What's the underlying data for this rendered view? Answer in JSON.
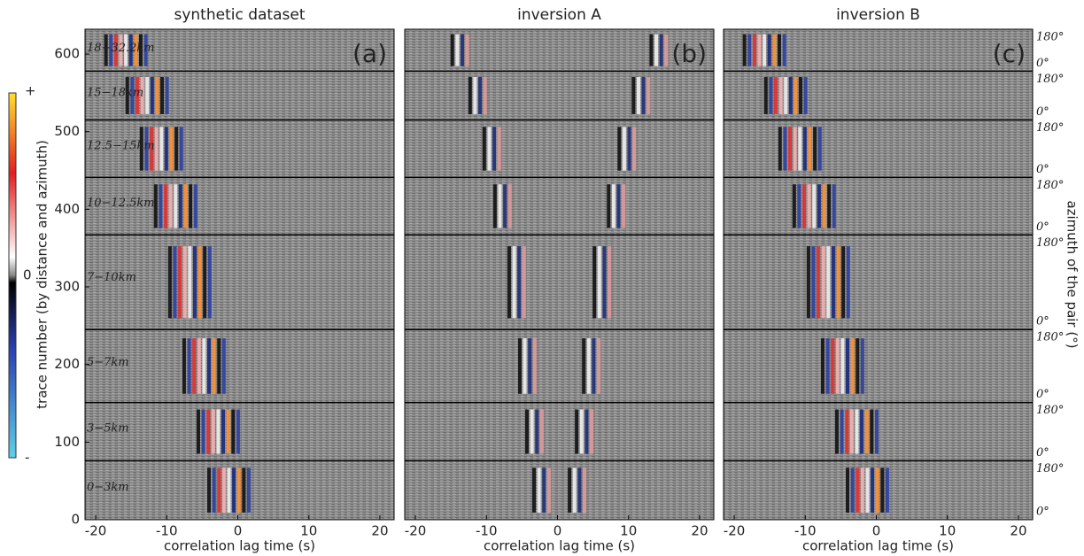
{
  "chart_data": {
    "type": "image",
    "panels": [
      {
        "title": "synthetic dataset",
        "label": "(a)"
      },
      {
        "title": "inversion A",
        "label": "(b)"
      },
      {
        "title": "inversion B",
        "label": "(c)"
      }
    ],
    "xlabel": "correlation lag time (s)",
    "ylabel": "trace number (by distance and azimuth)",
    "y2label": "azimuth of the pair (°)",
    "xlim": [
      -21.5,
      22
    ],
    "xticks": [
      -20,
      -10,
      0,
      10,
      20
    ],
    "ylim": [
      0,
      632
    ],
    "yticks": [
      0,
      100,
      200,
      300,
      400,
      500,
      600
    ],
    "band_edges": [
      76,
      151,
      245,
      367,
      441,
      515,
      578
    ],
    "band_labels": [
      "0−3km",
      "3−5km",
      "5−7km",
      "7−10km",
      "10−12.5km",
      "12.5−15km",
      "15−18km",
      "18−32.2km"
    ],
    "azimuth_labels": [
      "180°",
      "0°"
    ],
    "colorbar": {
      "top": "+",
      "middle": "0",
      "bottom": "-"
    }
  }
}
